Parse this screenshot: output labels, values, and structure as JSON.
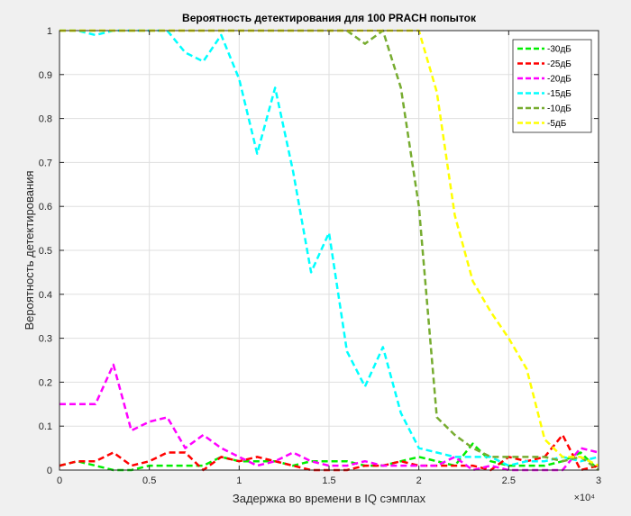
{
  "chart_data": {
    "type": "line",
    "title": "Вероятность детектирования для 100 PRACH попыток",
    "xlabel": "Задержка во времени в IQ сэмплах",
    "ylabel": "Вероятность детектирования",
    "x_exponent": "×10⁴",
    "xlim": [
      0,
      30000
    ],
    "ylim": [
      0,
      1
    ],
    "xticks": [
      0,
      5000,
      10000,
      15000,
      20000,
      25000,
      30000
    ],
    "xtick_labels": [
      "0",
      "0.5",
      "1",
      "1.5",
      "2",
      "2.5",
      "3"
    ],
    "yticks": [
      0,
      0.1,
      0.2,
      0.3,
      0.4,
      0.5,
      0.6,
      0.7,
      0.8,
      0.9,
      1
    ],
    "ytick_labels": [
      "0",
      "0.1",
      "0.2",
      "0.3",
      "0.4",
      "0.5",
      "0.6",
      "0.7",
      "0.8",
      "0.9",
      "1"
    ],
    "grid": true,
    "legend_position": "top-right",
    "line_style": "dashed",
    "x": [
      0,
      1000,
      2000,
      3000,
      4000,
      5000,
      6000,
      7000,
      8000,
      9000,
      10000,
      11000,
      12000,
      13000,
      14000,
      15000,
      16000,
      17000,
      18000,
      19000,
      20000,
      21000,
      22000,
      23000,
      24000,
      25000,
      26000,
      27000,
      28000,
      29000,
      30000
    ],
    "series": [
      {
        "name": "-30дБ",
        "color": "#00ee00",
        "values": [
          0.01,
          0.02,
          0.01,
          0.0,
          0.0,
          0.01,
          0.01,
          0.01,
          0.01,
          0.03,
          0.02,
          0.02,
          0.02,
          0.01,
          0.02,
          0.02,
          0.02,
          0.01,
          0.01,
          0.02,
          0.03,
          0.02,
          0.01,
          0.06,
          0.02,
          0.01,
          0.01,
          0.01,
          0.02,
          0.04,
          0.0
        ]
      },
      {
        "name": "-25дБ",
        "color": "#ff0000",
        "values": [
          0.01,
          0.02,
          0.02,
          0.04,
          0.01,
          0.02,
          0.04,
          0.04,
          0.0,
          0.03,
          0.02,
          0.03,
          0.02,
          0.01,
          0.0,
          0.0,
          0.0,
          0.01,
          0.01,
          0.02,
          0.01,
          0.01,
          0.01,
          0.01,
          0.0,
          0.03,
          0.02,
          0.03,
          0.08,
          0.0,
          0.01
        ]
      },
      {
        "name": "-20дБ",
        "color": "#ff00ff",
        "values": [
          0.15,
          0.15,
          0.15,
          0.24,
          0.09,
          0.11,
          0.12,
          0.05,
          0.08,
          0.05,
          0.03,
          0.01,
          0.02,
          0.04,
          0.02,
          0.01,
          0.01,
          0.02,
          0.01,
          0.01,
          0.01,
          0.01,
          0.03,
          0.0,
          0.01,
          0.0,
          0.0,
          0.0,
          0.0,
          0.05,
          0.04
        ]
      },
      {
        "name": "-15дБ",
        "color": "#00ffff",
        "values": [
          1,
          1,
          0.99,
          1,
          1,
          1,
          1,
          0.95,
          0.93,
          0.99,
          0.89,
          0.72,
          0.87,
          0.68,
          0.45,
          0.54,
          0.27,
          0.19,
          0.28,
          0.13,
          0.05,
          0.04,
          0.03,
          0.03,
          0.03,
          0.01,
          0.02,
          0.02,
          0.03,
          0.02,
          0.03
        ]
      },
      {
        "name": "-10дБ",
        "color": "#77ac30",
        "values": [
          1,
          1,
          1,
          1,
          1,
          1,
          1,
          1,
          1,
          1,
          1,
          1,
          1,
          1,
          1,
          1,
          1,
          0.97,
          1,
          0.87,
          0.6,
          0.12,
          0.08,
          0.05,
          0.03,
          0.03,
          0.03,
          0.03,
          0.02,
          0.03,
          0.0
        ]
      },
      {
        "name": "-5дБ",
        "color": "#ffff00",
        "values": [
          1,
          1,
          1,
          1,
          1,
          1,
          1,
          1,
          1,
          1,
          1,
          1,
          1,
          1,
          1,
          1,
          1,
          1,
          1,
          1,
          1,
          0.86,
          0.58,
          0.43,
          0.36,
          0.3,
          0.23,
          0.07,
          0.03,
          0.03,
          0.01
        ]
      }
    ]
  }
}
